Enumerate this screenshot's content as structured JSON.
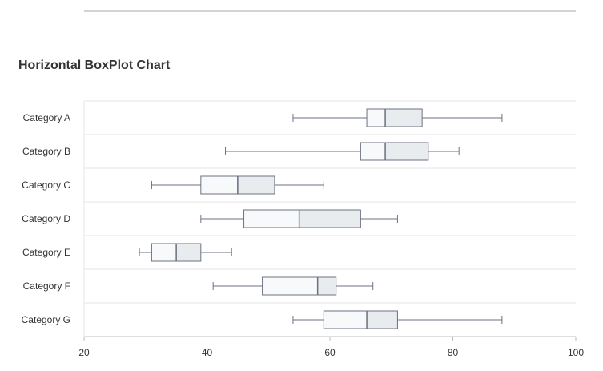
{
  "title": "Horizontal BoxPlot Chart",
  "chart_data": {
    "type": "boxplot",
    "orientation": "horizontal",
    "title": "Horizontal BoxPlot Chart",
    "xlim": [
      20,
      100
    ],
    "xticks": [
      20,
      40,
      60,
      80,
      100
    ],
    "grid": "horizontal band lines",
    "series": [
      {
        "category": "Category A",
        "min": 54,
        "q1": 66,
        "median": 69,
        "q3": 75,
        "max": 88
      },
      {
        "category": "Category B",
        "min": 43,
        "q1": 65,
        "median": 69,
        "q3": 76,
        "max": 81
      },
      {
        "category": "Category C",
        "min": 31,
        "q1": 39,
        "median": 45,
        "q3": 51,
        "max": 59
      },
      {
        "category": "Category D",
        "min": 39,
        "q1": 46,
        "median": 55,
        "q3": 65,
        "max": 71
      },
      {
        "category": "Category E",
        "min": 29,
        "q1": 31,
        "median": 35,
        "q3": 39,
        "max": 44
      },
      {
        "category": "Category F",
        "min": 41,
        "q1": 49,
        "median": 58,
        "q3": 61,
        "max": 67
      },
      {
        "category": "Category G",
        "min": 54,
        "q1": 59,
        "median": 66,
        "q3": 71,
        "max": 88
      }
    ],
    "colors": {
      "lower_box": "#f7f9fb",
      "upper_box": "#e8ecef",
      "stroke": "#6b7280",
      "grid": "#e5e5e5",
      "axis": "#bdbdbd"
    }
  }
}
